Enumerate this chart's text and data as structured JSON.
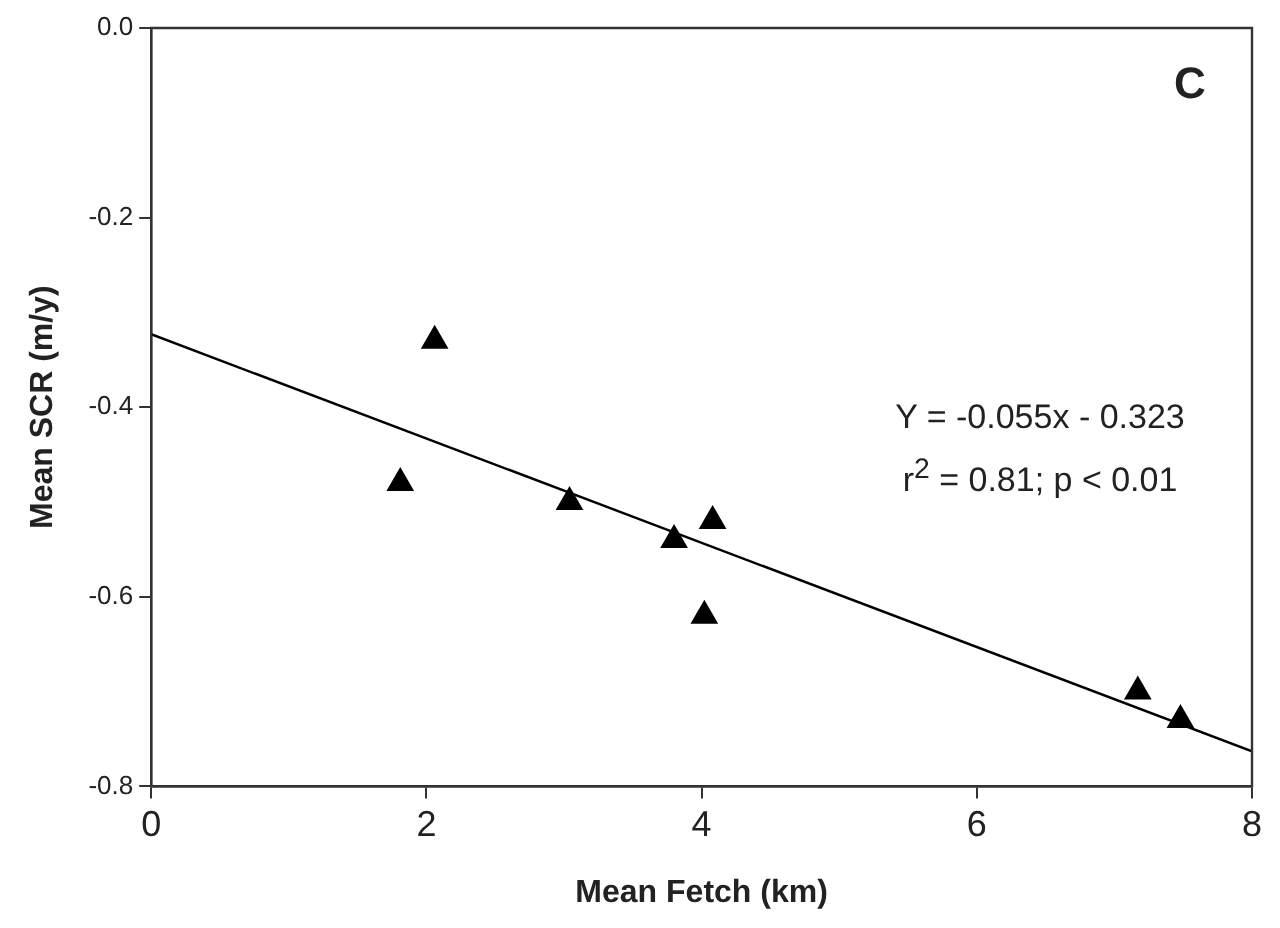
{
  "chart_data": {
    "type": "scatter",
    "xlabel": "Mean Fetch (km)",
    "ylabel": "Mean SCR (m/y)",
    "annotations": [
      "C",
      "Y = -0.055x - 0.323",
      "r$^{2}$ = 0.81; p < 0.01"
    ],
    "x": [
      1.81,
      2.06,
      3.04,
      3.8,
      4.02,
      4.08,
      7.17,
      7.48
    ],
    "series": [
      {
        "color": "#000000",
        "marker": "triangle",
        "values": [
          -0.48,
          -0.33,
          -0.5,
          -0.54,
          -0.62,
          -0.52,
          -0.7,
          -0.73
        ]
      },
      {
        "type": "line",
        "color": "#000000",
        "marker": "none",
        "x": [
          0,
          8
        ],
        "values": [
          -0.323,
          -0.763
        ]
      }
    ],
    "xlim": [
      0,
      8
    ],
    "xticks": [
      0,
      2,
      4,
      6,
      8
    ],
    "ylim": [
      -0.8,
      0
    ],
    "yticks": [
      {
        "value": 0,
        "label": "0.0"
      },
      -0.2,
      -0.4,
      -0.6,
      -0.8
    ],
    "grid": false,
    "legend": false
  }
}
